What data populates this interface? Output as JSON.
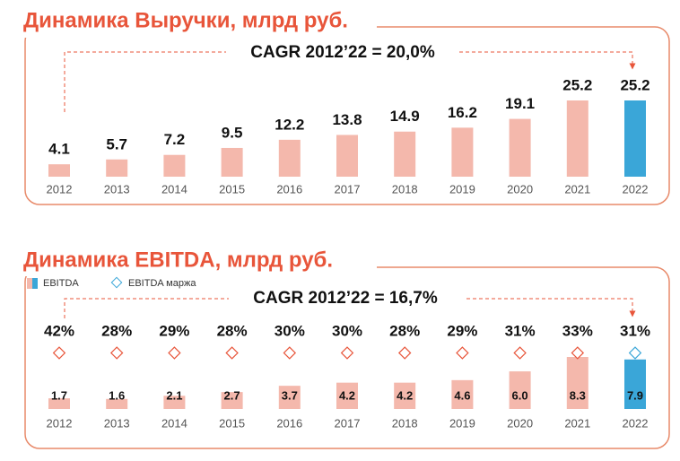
{
  "chart_data": [
    {
      "type": "bar",
      "title": "Динамика Выручки, млрд руб.",
      "annotation": "CAGR 2012’22 = 20,0%",
      "categories": [
        "2012",
        "2013",
        "2014",
        "2015",
        "2016",
        "2017",
        "2018",
        "2019",
        "2020",
        "2021",
        "2022"
      ],
      "values": [
        4.1,
        5.7,
        7.2,
        9.5,
        12.2,
        13.8,
        14.9,
        16.2,
        19.1,
        25.2,
        25.2
      ],
      "colors": [
        "#f4b8ac",
        "#f4b8ac",
        "#f4b8ac",
        "#f4b8ac",
        "#f4b8ac",
        "#f4b8ac",
        "#f4b8ac",
        "#f4b8ac",
        "#f4b8ac",
        "#f4b8ac",
        "#3aa6d8"
      ]
    },
    {
      "type": "bar",
      "title": "Динамика EBITDA, млрд руб.",
      "annotation": "CAGR 2012’22 = 16,7%",
      "categories": [
        "2012",
        "2013",
        "2014",
        "2015",
        "2016",
        "2017",
        "2018",
        "2019",
        "2020",
        "2021",
        "2022"
      ],
      "series": [
        {
          "name": "EBITDA",
          "values": [
            1.7,
            1.6,
            2.1,
            2.7,
            3.7,
            4.2,
            4.2,
            4.6,
            6.0,
            8.3,
            7.9
          ],
          "value_labels": [
            "1.7",
            "1.6",
            "2.1",
            "2.7",
            "3.7",
            "4.2",
            "4.2",
            "4.6",
            "6.0",
            "8.3",
            "7.9"
          ],
          "colors": [
            "#f4b8ac",
            "#f4b8ac",
            "#f4b8ac",
            "#f4b8ac",
            "#f4b8ac",
            "#f4b8ac",
            "#f4b8ac",
            "#f4b8ac",
            "#f4b8ac",
            "#f4b8ac",
            "#3aa6d8"
          ]
        },
        {
          "name": "EBITDA маржа",
          "marker": "diamond",
          "values": [
            42,
            28,
            29,
            28,
            30,
            30,
            28,
            29,
            31,
            33,
            31
          ],
          "value_labels": [
            "42%",
            "28%",
            "29%",
            "28%",
            "30%",
            "30%",
            "28%",
            "29%",
            "31%",
            "33%",
            "31%"
          ],
          "colors": [
            "#e8553a",
            "#e8553a",
            "#e8553a",
            "#e8553a",
            "#e8553a",
            "#e8553a",
            "#e8553a",
            "#e8553a",
            "#e8553a",
            "#e8553a",
            "#3aa6d8"
          ]
        }
      ]
    }
  ]
}
